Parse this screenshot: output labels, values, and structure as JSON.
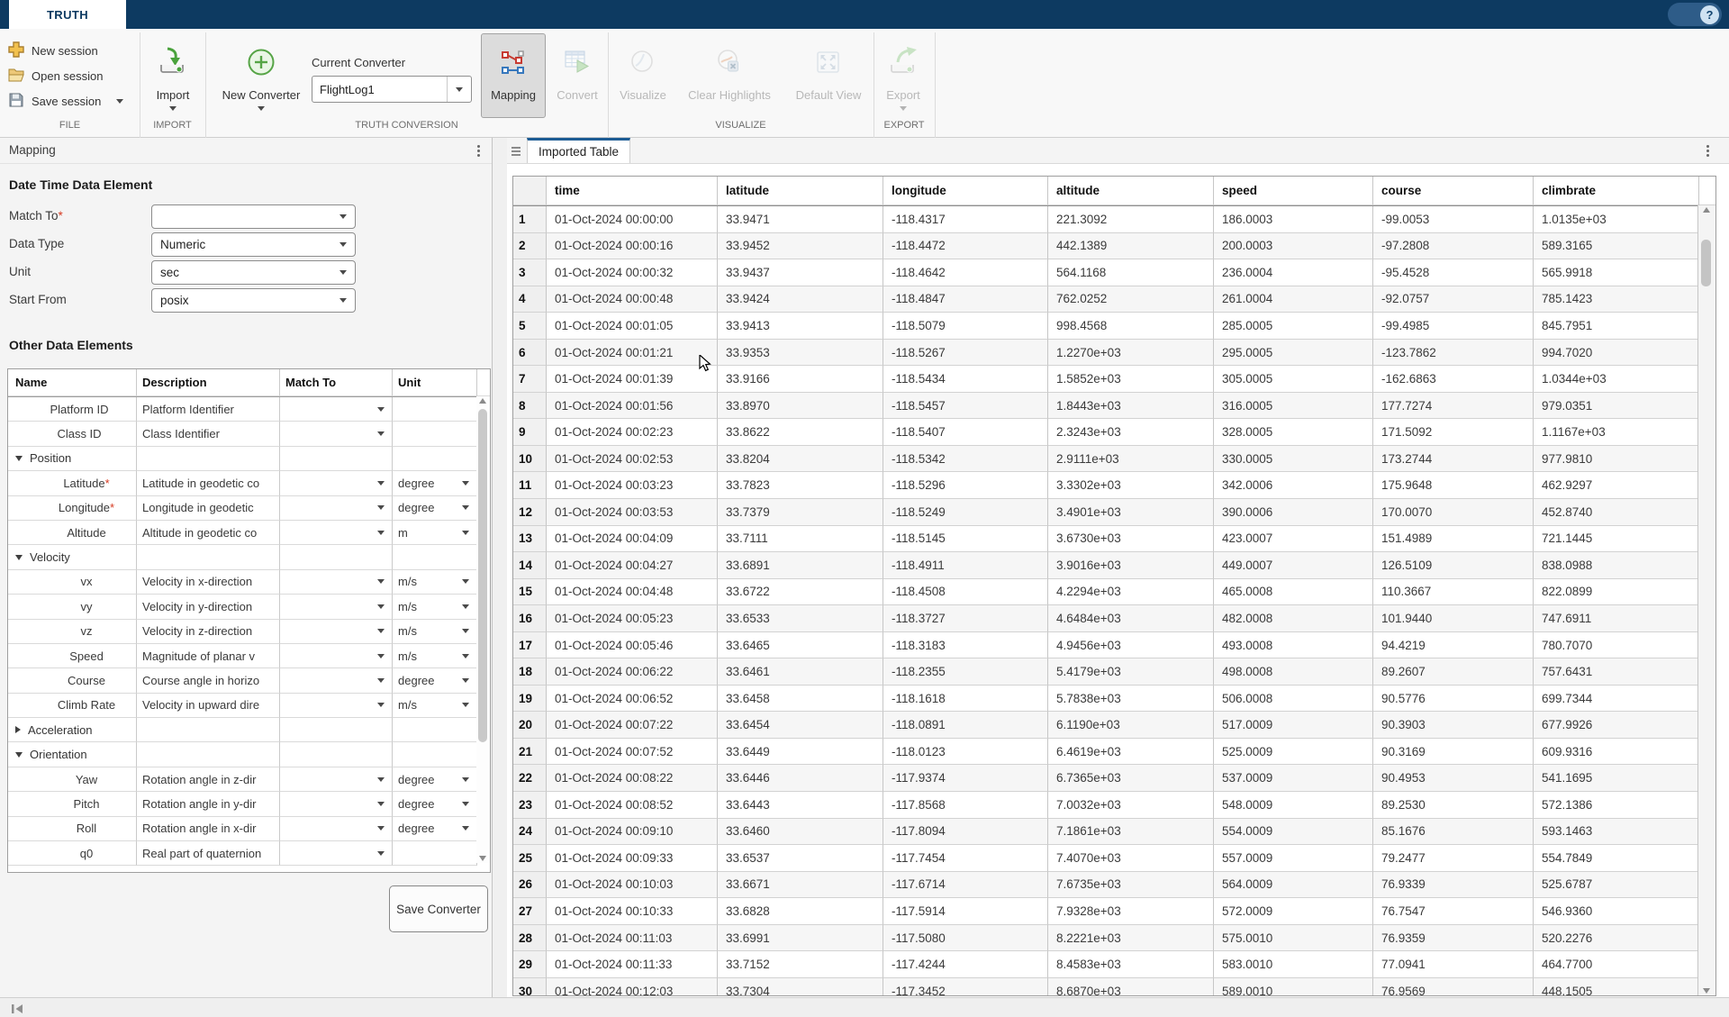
{
  "titlebar": {
    "tab": "TRUTH",
    "help": "?"
  },
  "toolstrip": {
    "file": {
      "label": "FILE",
      "new_session": "New session",
      "open_session": "Open session",
      "save_session": "Save session"
    },
    "import_sec": {
      "label": "IMPORT",
      "import": "Import"
    },
    "truth": {
      "label": "TRUTH CONVERSION",
      "new_converter": "New Converter",
      "current_converter": "Current Converter",
      "converter_value": "FlightLog1",
      "mapping": "Mapping",
      "convert": "Convert"
    },
    "visualize_sec": {
      "label": "VISUALIZE",
      "visualize": "Visualize",
      "clear_highlights": "Clear Highlights",
      "default_view": "Default View"
    },
    "export_sec": {
      "label": "EXPORT",
      "export": "Export"
    },
    "colors": {
      "titlebar": "#0d3a61",
      "selected_button": "#dcdcdc",
      "tab_stripe": "#1d5c94"
    }
  },
  "mapping_panel": {
    "title": "Mapping",
    "datetime_heading": "Date Time Data Element",
    "fields": [
      {
        "label": "Match To",
        "req": "*",
        "value": ""
      },
      {
        "label": "Data Type",
        "req": "",
        "value": "Numeric"
      },
      {
        "label": "Unit",
        "req": "",
        "value": "sec"
      },
      {
        "label": "Start From",
        "req": "",
        "value": "posix"
      }
    ],
    "other_heading": "Other Data Elements",
    "columns": [
      "Name",
      "Description",
      "Match To",
      "Unit"
    ],
    "rows": [
      {
        "name": "Platform ID",
        "req": false,
        "desc": "Platform Identifier",
        "kind": "leaf",
        "level": 1,
        "match": true,
        "unit": ""
      },
      {
        "name": "Class ID",
        "req": false,
        "desc": "Class Identifier",
        "kind": "leaf",
        "level": 1,
        "match": true,
        "unit": ""
      },
      {
        "name": "Position",
        "req": false,
        "desc": "",
        "kind": "group-open",
        "level": 0,
        "match": false,
        "unit": null
      },
      {
        "name": "Latitude",
        "req": true,
        "desc": "Latitude in geodetic co",
        "kind": "leaf",
        "level": 2,
        "match": true,
        "unit": "degree"
      },
      {
        "name": "Longitude",
        "req": true,
        "desc": "Longitude in geodetic",
        "kind": "leaf",
        "level": 2,
        "match": true,
        "unit": "degree"
      },
      {
        "name": "Altitude",
        "req": false,
        "desc": "Altitude in geodetic co",
        "kind": "leaf",
        "level": 2,
        "match": true,
        "unit": "m"
      },
      {
        "name": "Velocity",
        "req": false,
        "desc": "",
        "kind": "group-open",
        "level": 0,
        "match": false,
        "unit": null
      },
      {
        "name": "vx",
        "req": false,
        "desc": "Velocity in x-direction",
        "kind": "leaf",
        "level": 2,
        "match": true,
        "unit": "m/s"
      },
      {
        "name": "vy",
        "req": false,
        "desc": "Velocity in y-direction",
        "kind": "leaf",
        "level": 2,
        "match": true,
        "unit": "m/s"
      },
      {
        "name": "vz",
        "req": false,
        "desc": "Velocity in z-direction",
        "kind": "leaf",
        "level": 2,
        "match": true,
        "unit": "m/s"
      },
      {
        "name": "Speed",
        "req": false,
        "desc": "Magnitude of planar v",
        "kind": "leaf",
        "level": 2,
        "match": true,
        "unit": "m/s"
      },
      {
        "name": "Course",
        "req": false,
        "desc": "Course angle in horizo",
        "kind": "leaf",
        "level": 2,
        "match": true,
        "unit": "degree"
      },
      {
        "name": "Climb Rate",
        "req": false,
        "desc": "Velocity in upward dire",
        "kind": "leaf",
        "level": 2,
        "match": true,
        "unit": "m/s"
      },
      {
        "name": "Acceleration",
        "req": false,
        "desc": "",
        "kind": "group-closed",
        "level": 0,
        "match": false,
        "unit": null
      },
      {
        "name": "Orientation",
        "req": false,
        "desc": "",
        "kind": "group-open",
        "level": 0,
        "match": false,
        "unit": null
      },
      {
        "name": "Yaw",
        "req": false,
        "desc": "Rotation angle in z-dir",
        "kind": "leaf",
        "level": 2,
        "match": true,
        "unit": "degree"
      },
      {
        "name": "Pitch",
        "req": false,
        "desc": "Rotation angle in y-dir",
        "kind": "leaf",
        "level": 2,
        "match": true,
        "unit": "degree"
      },
      {
        "name": "Roll",
        "req": false,
        "desc": "Rotation angle in x-dir",
        "kind": "leaf",
        "level": 2,
        "match": true,
        "unit": "degree"
      },
      {
        "name": "q0",
        "req": false,
        "desc": "Real part of quaternion",
        "kind": "leaf",
        "level": 2,
        "match": true,
        "unit": ""
      }
    ],
    "save_button": "Save Converter"
  },
  "table_panel": {
    "tab": "Imported Table",
    "columns": [
      "time",
      "latitude",
      "longitude",
      "altitude",
      "speed",
      "course",
      "climbrate"
    ],
    "rows": [
      [
        "1",
        "01-Oct-2024 00:00:00",
        "33.9471",
        "-118.4317",
        "221.3092",
        "186.0003",
        "-99.0053",
        "1.0135e+03"
      ],
      [
        "2",
        "01-Oct-2024 00:00:16",
        "33.9452",
        "-118.4472",
        "442.1389",
        "200.0003",
        "-97.2808",
        "589.3165"
      ],
      [
        "3",
        "01-Oct-2024 00:00:32",
        "33.9437",
        "-118.4642",
        "564.1168",
        "236.0004",
        "-95.4528",
        "565.9918"
      ],
      [
        "4",
        "01-Oct-2024 00:00:48",
        "33.9424",
        "-118.4847",
        "762.0252",
        "261.0004",
        "-92.0757",
        "785.1423"
      ],
      [
        "5",
        "01-Oct-2024 00:01:05",
        "33.9413",
        "-118.5079",
        "998.4568",
        "285.0005",
        "-99.4985",
        "845.7951"
      ],
      [
        "6",
        "01-Oct-2024 00:01:21",
        "33.9353",
        "-118.5267",
        "1.2270e+03",
        "295.0005",
        "-123.7862",
        "994.7020"
      ],
      [
        "7",
        "01-Oct-2024 00:01:39",
        "33.9166",
        "-118.5434",
        "1.5852e+03",
        "305.0005",
        "-162.6863",
        "1.0344e+03"
      ],
      [
        "8",
        "01-Oct-2024 00:01:56",
        "33.8970",
        "-118.5457",
        "1.8443e+03",
        "316.0005",
        "177.7274",
        "979.0351"
      ],
      [
        "9",
        "01-Oct-2024 00:02:23",
        "33.8622",
        "-118.5407",
        "2.3243e+03",
        "328.0005",
        "171.5092",
        "1.1167e+03"
      ],
      [
        "10",
        "01-Oct-2024 00:02:53",
        "33.8204",
        "-118.5342",
        "2.9111e+03",
        "330.0005",
        "173.2744",
        "977.9810"
      ],
      [
        "11",
        "01-Oct-2024 00:03:23",
        "33.7823",
        "-118.5296",
        "3.3302e+03",
        "342.0006",
        "175.9648",
        "462.9297"
      ],
      [
        "12",
        "01-Oct-2024 00:03:53",
        "33.7379",
        "-118.5249",
        "3.4901e+03",
        "390.0006",
        "170.0070",
        "452.8740"
      ],
      [
        "13",
        "01-Oct-2024 00:04:09",
        "33.7111",
        "-118.5145",
        "3.6730e+03",
        "423.0007",
        "151.4989",
        "721.1445"
      ],
      [
        "14",
        "01-Oct-2024 00:04:27",
        "33.6891",
        "-118.4911",
        "3.9016e+03",
        "449.0007",
        "126.5109",
        "838.0988"
      ],
      [
        "15",
        "01-Oct-2024 00:04:48",
        "33.6722",
        "-118.4508",
        "4.2294e+03",
        "465.0008",
        "110.3667",
        "822.0899"
      ],
      [
        "16",
        "01-Oct-2024 00:05:23",
        "33.6533",
        "-118.3727",
        "4.6484e+03",
        "482.0008",
        "101.9440",
        "747.6911"
      ],
      [
        "17",
        "01-Oct-2024 00:05:46",
        "33.6465",
        "-118.3183",
        "4.9456e+03",
        "493.0008",
        "94.4219",
        "780.7070"
      ],
      [
        "18",
        "01-Oct-2024 00:06:22",
        "33.6461",
        "-118.2355",
        "5.4179e+03",
        "498.0008",
        "89.2607",
        "757.6431"
      ],
      [
        "19",
        "01-Oct-2024 00:06:52",
        "33.6458",
        "-118.1618",
        "5.7838e+03",
        "506.0008",
        "90.5776",
        "699.7344"
      ],
      [
        "20",
        "01-Oct-2024 00:07:22",
        "33.6454",
        "-118.0891",
        "6.1190e+03",
        "517.0009",
        "90.3903",
        "677.9926"
      ],
      [
        "21",
        "01-Oct-2024 00:07:52",
        "33.6449",
        "-118.0123",
        "6.4619e+03",
        "525.0009",
        "90.3169",
        "609.9316"
      ],
      [
        "22",
        "01-Oct-2024 00:08:22",
        "33.6446",
        "-117.9374",
        "6.7365e+03",
        "537.0009",
        "90.4953",
        "541.1695"
      ],
      [
        "23",
        "01-Oct-2024 00:08:52",
        "33.6443",
        "-117.8568",
        "7.0032e+03",
        "548.0009",
        "89.2530",
        "572.1386"
      ],
      [
        "24",
        "01-Oct-2024 00:09:10",
        "33.6460",
        "-117.8094",
        "7.1861e+03",
        "554.0009",
        "85.1676",
        "593.1463"
      ],
      [
        "25",
        "01-Oct-2024 00:09:33",
        "33.6537",
        "-117.7454",
        "7.4070e+03",
        "557.0009",
        "79.2477",
        "554.7849"
      ],
      [
        "26",
        "01-Oct-2024 00:10:03",
        "33.6671",
        "-117.6714",
        "7.6735e+03",
        "564.0009",
        "76.9339",
        "525.6787"
      ],
      [
        "27",
        "01-Oct-2024 00:10:33",
        "33.6828",
        "-117.5914",
        "7.9328e+03",
        "572.0009",
        "76.7547",
        "546.9360"
      ],
      [
        "28",
        "01-Oct-2024 00:11:03",
        "33.6991",
        "-117.5080",
        "8.2221e+03",
        "575.0010",
        "76.9359",
        "520.2276"
      ],
      [
        "29",
        "01-Oct-2024 00:11:33",
        "33.7152",
        "-117.4244",
        "8.4583e+03",
        "583.0010",
        "77.0941",
        "464.7700"
      ],
      [
        "30",
        "01-Oct-2024 00:12:03",
        "33.7304",
        "-117.3452",
        "8.6870e+03",
        "589.0010",
        "76.9569",
        "448.1505"
      ]
    ]
  }
}
